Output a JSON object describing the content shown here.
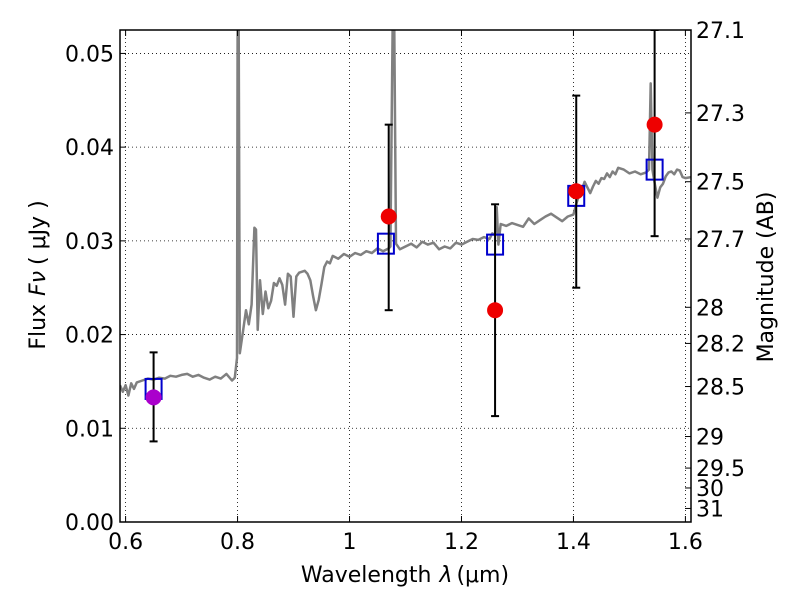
{
  "chart_data": {
    "type": "scatter",
    "xlabel_text": "Wavelength",
    "xlabel_symbol": "λ",
    "xlabel_unit": "(μm)",
    "ylabel_text": "Flux",
    "ylabel_symbol": "Fν",
    "ylabel_unit": "( μJy )",
    "y2label": "Magnitude (AB)",
    "xlim": [
      0.59,
      1.61
    ],
    "ylim": [
      0.0,
      0.0525
    ],
    "grid": true,
    "x_ticks": [
      {
        "value": 0.6,
        "label": "0.6"
      },
      {
        "value": 0.8,
        "label": "0.8"
      },
      {
        "value": 1.0,
        "label": "1"
      },
      {
        "value": 1.2,
        "label": "1.2"
      },
      {
        "value": 1.4,
        "label": "1.4"
      },
      {
        "value": 1.6,
        "label": "1.6"
      }
    ],
    "y_ticks": [
      {
        "value": 0.0,
        "label": "0.00"
      },
      {
        "value": 0.01,
        "label": "0.01"
      },
      {
        "value": 0.02,
        "label": "0.02"
      },
      {
        "value": 0.03,
        "label": "0.03"
      },
      {
        "value": 0.04,
        "label": "0.04"
      },
      {
        "value": 0.05,
        "label": "0.05"
      }
    ],
    "y2_ticks": [
      {
        "value": 27.1,
        "label": "27.1"
      },
      {
        "value": 27.3,
        "label": "27.3"
      },
      {
        "value": 27.5,
        "label": "27.5"
      },
      {
        "value": 27.7,
        "label": "27.7"
      },
      {
        "value": 28.0,
        "label": "28"
      },
      {
        "value": 28.2,
        "label": "28.2"
      },
      {
        "value": 28.5,
        "label": "28.5"
      },
      {
        "value": 29.0,
        "label": "29"
      },
      {
        "value": 29.5,
        "label": "29.5"
      },
      {
        "value": 30.0,
        "label": "30"
      },
      {
        "value": 31.0,
        "label": "31"
      }
    ],
    "series": [
      {
        "kind": "model_spectrum",
        "color": "#808080",
        "points": [
          [
            0.59,
            0.0146
          ],
          [
            0.595,
            0.0139
          ],
          [
            0.6,
            0.0146
          ],
          [
            0.605,
            0.0135
          ],
          [
            0.61,
            0.0148
          ],
          [
            0.615,
            0.0142
          ],
          [
            0.62,
            0.0149
          ],
          [
            0.63,
            0.0151
          ],
          [
            0.64,
            0.0153
          ],
          [
            0.65,
            0.0152
          ],
          [
            0.66,
            0.0154
          ],
          [
            0.67,
            0.0153
          ],
          [
            0.68,
            0.0156
          ],
          [
            0.69,
            0.0155
          ],
          [
            0.7,
            0.0157
          ],
          [
            0.71,
            0.0158
          ],
          [
            0.72,
            0.0155
          ],
          [
            0.73,
            0.0157
          ],
          [
            0.74,
            0.0154
          ],
          [
            0.75,
            0.0152
          ],
          [
            0.76,
            0.0155
          ],
          [
            0.77,
            0.0153
          ],
          [
            0.78,
            0.0158
          ],
          [
            0.79,
            0.0151
          ],
          [
            0.795,
            0.0154
          ],
          [
            0.799,
            0.0175
          ],
          [
            0.8,
            0.0525
          ],
          [
            0.802,
            0.0525
          ],
          [
            0.804,
            0.018
          ],
          [
            0.81,
            0.0205
          ],
          [
            0.815,
            0.0226
          ],
          [
            0.82,
            0.0211
          ],
          [
            0.825,
            0.0232
          ],
          [
            0.83,
            0.0314
          ],
          [
            0.833,
            0.0312
          ],
          [
            0.836,
            0.0205
          ],
          [
            0.84,
            0.0258
          ],
          [
            0.845,
            0.0222
          ],
          [
            0.85,
            0.0246
          ],
          [
            0.855,
            0.0228
          ],
          [
            0.86,
            0.0236
          ],
          [
            0.865,
            0.0255
          ],
          [
            0.87,
            0.0252
          ],
          [
            0.875,
            0.026
          ],
          [
            0.88,
            0.0253
          ],
          [
            0.885,
            0.0232
          ],
          [
            0.89,
            0.0265
          ],
          [
            0.895,
            0.0262
          ],
          [
            0.9,
            0.0219
          ],
          [
            0.905,
            0.0262
          ],
          [
            0.91,
            0.0266
          ],
          [
            0.92,
            0.0268
          ],
          [
            0.925,
            0.0265
          ],
          [
            0.93,
            0.0258
          ],
          [
            0.935,
            0.0241
          ],
          [
            0.94,
            0.0226
          ],
          [
            0.945,
            0.0237
          ],
          [
            0.95,
            0.0254
          ],
          [
            0.955,
            0.0272
          ],
          [
            0.96,
            0.0278
          ],
          [
            0.965,
            0.0276
          ],
          [
            0.97,
            0.0284
          ],
          [
            0.98,
            0.0281
          ],
          [
            0.99,
            0.0286
          ],
          [
            1.0,
            0.0283
          ],
          [
            1.01,
            0.0287
          ],
          [
            1.02,
            0.0285
          ],
          [
            1.03,
            0.0289
          ],
          [
            1.04,
            0.0287
          ],
          [
            1.05,
            0.0292
          ],
          [
            1.06,
            0.0289
          ],
          [
            1.07,
            0.0292
          ],
          [
            1.073,
            0.0294
          ],
          [
            1.077,
            0.0525
          ],
          [
            1.08,
            0.0525
          ],
          [
            1.083,
            0.0297
          ],
          [
            1.09,
            0.0291
          ],
          [
            1.1,
            0.0294
          ],
          [
            1.11,
            0.0297
          ],
          [
            1.12,
            0.0293
          ],
          [
            1.13,
            0.0299
          ],
          [
            1.14,
            0.0296
          ],
          [
            1.15,
            0.0298
          ],
          [
            1.16,
            0.0291
          ],
          [
            1.17,
            0.0294
          ],
          [
            1.18,
            0.0292
          ],
          [
            1.19,
            0.0298
          ],
          [
            1.2,
            0.0296
          ],
          [
            1.21,
            0.0299
          ],
          [
            1.22,
            0.0302
          ],
          [
            1.23,
            0.0301
          ],
          [
            1.24,
            0.0304
          ],
          [
            1.25,
            0.0302
          ],
          [
            1.255,
            0.0308
          ],
          [
            1.26,
            0.0306
          ],
          [
            1.263,
            0.0336
          ],
          [
            1.266,
            0.0296
          ],
          [
            1.27,
            0.0318
          ],
          [
            1.28,
            0.0316
          ],
          [
            1.29,
            0.0319
          ],
          [
            1.3,
            0.0317
          ],
          [
            1.31,
            0.0315
          ],
          [
            1.32,
            0.0324
          ],
          [
            1.33,
            0.0318
          ],
          [
            1.34,
            0.0322
          ],
          [
            1.35,
            0.0326
          ],
          [
            1.36,
            0.0329
          ],
          [
            1.37,
            0.0325
          ],
          [
            1.38,
            0.0321
          ],
          [
            1.39,
            0.0326
          ],
          [
            1.4,
            0.0328
          ],
          [
            1.405,
            0.0339
          ],
          [
            1.41,
            0.0349
          ],
          [
            1.415,
            0.0354
          ],
          [
            1.42,
            0.0363
          ],
          [
            1.425,
            0.0357
          ],
          [
            1.43,
            0.0351
          ],
          [
            1.435,
            0.0358
          ],
          [
            1.44,
            0.0364
          ],
          [
            1.445,
            0.0361
          ],
          [
            1.45,
            0.0367
          ],
          [
            1.455,
            0.0366
          ],
          [
            1.46,
            0.0372
          ],
          [
            1.465,
            0.0368
          ],
          [
            1.47,
            0.0374
          ],
          [
            1.475,
            0.0371
          ],
          [
            1.48,
            0.0378
          ],
          [
            1.49,
            0.0376
          ],
          [
            1.5,
            0.0372
          ],
          [
            1.51,
            0.0374
          ],
          [
            1.52,
            0.0371
          ],
          [
            1.53,
            0.0373
          ],
          [
            1.535,
            0.0376
          ],
          [
            1.538,
            0.0468
          ],
          [
            1.541,
            0.0376
          ],
          [
            1.545,
            0.0362
          ],
          [
            1.55,
            0.0346
          ],
          [
            1.555,
            0.0357
          ],
          [
            1.56,
            0.0361
          ],
          [
            1.565,
            0.0369
          ],
          [
            1.57,
            0.0373
          ],
          [
            1.575,
            0.0374
          ],
          [
            1.58,
            0.0371
          ],
          [
            1.585,
            0.0376
          ],
          [
            1.59,
            0.0375
          ],
          [
            1.595,
            0.0368
          ],
          [
            1.6,
            0.0367
          ],
          [
            1.61,
            0.0368
          ]
        ]
      },
      {
        "kind": "model_photometry",
        "marker": "open_square",
        "color": "#0000cc",
        "points": [
          [
            0.65,
            0.0142
          ],
          [
            1.065,
            0.0297
          ],
          [
            1.26,
            0.0296
          ],
          [
            1.405,
            0.0348
          ],
          [
            1.545,
            0.0376
          ]
        ]
      },
      {
        "kind": "observed",
        "marker": "filled_circle",
        "color": "#ee0000",
        "points": [
          {
            "x": 1.07,
            "y": 0.0326,
            "ylo": 0.0226,
            "yhi": 0.0424
          },
          {
            "x": 1.26,
            "y": 0.0226,
            "ylo": 0.0113,
            "yhi": 0.0339
          },
          {
            "x": 1.405,
            "y": 0.0353,
            "ylo": 0.025,
            "yhi": 0.0455
          },
          {
            "x": 1.545,
            "y": 0.0424,
            "ylo": 0.0305,
            "yhi": 0.0525
          }
        ]
      },
      {
        "kind": "observed_alt",
        "marker": "filled_circle",
        "color": "#aa00cc",
        "points": [
          {
            "x": 0.65,
            "y": 0.0133,
            "ylo": 0.0086,
            "yhi": 0.0181
          }
        ]
      }
    ]
  }
}
